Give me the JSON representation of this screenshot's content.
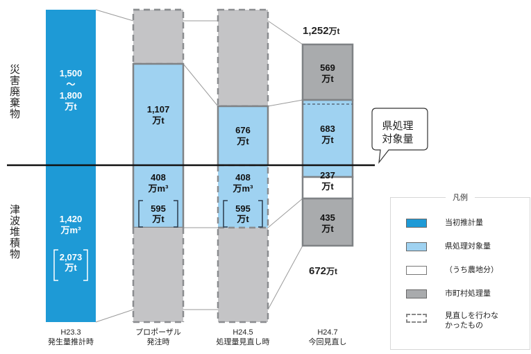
{
  "chart_data": {
    "type": "bar",
    "categories": [
      "H23.3 発生量推計時",
      "プロポーザル 発注時",
      "H24.5 処理量見直し時",
      "H24.7 今回見直し"
    ],
    "category_lines": [
      [
        "H23.3",
        "発生量推計時"
      ],
      [
        "プロポーザル",
        "発注時"
      ],
      [
        "H24.5",
        "処理量見直し時"
      ],
      [
        "H24.7",
        "今回見直し"
      ]
    ],
    "section_labels": {
      "top": "災害廃棄物",
      "bottom": "津波堆積物"
    },
    "bars": [
      {
        "lines": [
          "1,500",
          "〜",
          "1,800"
        ],
        "unit": "万t"
      },
      {
        "lines": [
          "1,420"
        ],
        "unit": "万m³",
        "bracket": [
          "2,073",
          "万t"
        ]
      },
      {
        "lines": [
          "1,107"
        ],
        "unit": "万t"
      },
      {
        "lines": [
          "408"
        ],
        "unit": "万m³",
        "bracket": [
          "595",
          "万t"
        ]
      },
      {
        "lines": [
          "676"
        ],
        "unit": "万t"
      },
      {
        "lines": [
          "408"
        ],
        "unit": "万m³",
        "bracket": [
          "595",
          "万t"
        ]
      },
      {
        "lines": [
          "569"
        ],
        "unit": "万t"
      },
      {
        "lines": [
          "683"
        ],
        "unit": "万t"
      },
      {
        "lines": [
          "237"
        ],
        "unit": "万t"
      },
      {
        "lines": [
          "435"
        ],
        "unit": "万t"
      }
    ],
    "totals": {
      "top": "1,252",
      "bottom": "672",
      "unit": "万t"
    },
    "callout": [
      "県処理",
      "対象量"
    ],
    "legend": {
      "title": "凡例",
      "items": [
        {
          "label": "当初推計量",
          "style": "solid",
          "color": "#1e9ad6"
        },
        {
          "label": "県処理対象量",
          "style": "solid",
          "color": "#9fd2f1"
        },
        {
          "label": "（うち農地分）",
          "style": "outline",
          "color": "#ffffff"
        },
        {
          "label": "市町村処理量",
          "style": "solid",
          "color": "#a9abad"
        },
        {
          "label": "見直しを行わなかったもの",
          "lines": [
            "見直しを行わな",
            "かったもの"
          ],
          "style": "dashed"
        }
      ]
    },
    "colors": {
      "initial": "#1e9ad6",
      "prefecture": "#9fd2f1",
      "farmland": "#ffffff",
      "municipal": "#a9abad",
      "unrevised": "#c4c4c6",
      "border": "#7f8285"
    }
  }
}
